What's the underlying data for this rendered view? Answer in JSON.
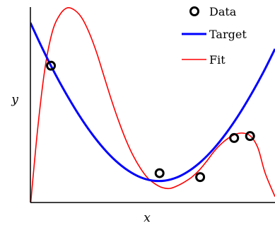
{
  "chart_data": {
    "type": "line",
    "title": "",
    "xlabel": "x",
    "ylabel": "y",
    "xlim": [
      0,
      1
    ],
    "ylim": [
      0,
      1
    ],
    "grid": false,
    "ticks": false,
    "legend_position": "top-right",
    "series": [
      {
        "name": "Data",
        "kind": "scatter",
        "marker": "open-circle",
        "color": "#000000",
        "x": [
          0.084,
          0.528,
          0.694,
          0.833,
          0.898
        ],
        "y": [
          0.7,
          0.15,
          0.13,
          0.33,
          0.34
        ]
      },
      {
        "name": "Target",
        "kind": "line",
        "color": "#0000ff",
        "x": [
          0.0,
          0.05,
          0.1,
          0.15,
          0.2,
          0.25,
          0.3,
          0.35,
          0.4,
          0.45,
          0.5,
          0.55,
          0.6,
          0.65,
          0.7,
          0.75,
          0.8,
          0.85,
          0.9,
          0.95,
          1.0
        ],
        "y": [
          0.92,
          0.786,
          0.661,
          0.548,
          0.445,
          0.354,
          0.276,
          0.212,
          0.163,
          0.129,
          0.112,
          0.112,
          0.129,
          0.163,
          0.212,
          0.276,
          0.354,
          0.445,
          0.548,
          0.661,
          0.786
        ]
      },
      {
        "name": "Fit",
        "kind": "line",
        "color": "#ff0000",
        "x": [
          0.0,
          0.03,
          0.06,
          0.09,
          0.12,
          0.15,
          0.18,
          0.21,
          0.24,
          0.27,
          0.3,
          0.33,
          0.36,
          0.39,
          0.42,
          0.45,
          0.48,
          0.51,
          0.54,
          0.57,
          0.6,
          0.63,
          0.66,
          0.69,
          0.72,
          0.75,
          0.78,
          0.81,
          0.84,
          0.87,
          0.9,
          0.93,
          0.96,
          1.0
        ],
        "y": [
          -0.02,
          0.38,
          0.69,
          0.875,
          0.96,
          0.996,
          0.985,
          0.945,
          0.87,
          0.77,
          0.65,
          0.53,
          0.42,
          0.322,
          0.24,
          0.175,
          0.125,
          0.095,
          0.076,
          0.072,
          0.085,
          0.105,
          0.13,
          0.165,
          0.21,
          0.26,
          0.3,
          0.33,
          0.35,
          0.355,
          0.34,
          0.28,
          0.15,
          0.03
        ]
      }
    ]
  }
}
